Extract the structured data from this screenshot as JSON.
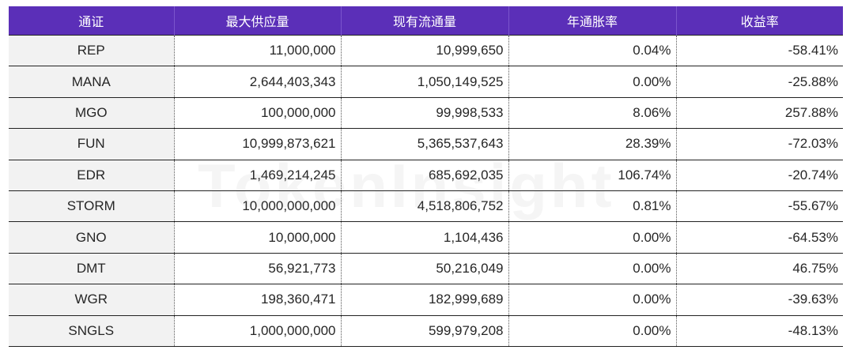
{
  "table": {
    "headers": [
      "通证",
      "最大供应量",
      "现有流通量",
      "年通胀率",
      "收益率"
    ],
    "rows": [
      [
        "REP",
        "11,000,000",
        "10,999,650",
        "0.04%",
        "-58.41%"
      ],
      [
        "MANA",
        "2,644,403,343",
        "1,050,149,525",
        "0.00%",
        "-25.88%"
      ],
      [
        "MGO",
        "100,000,000",
        "99,998,533",
        "8.06%",
        "257.88%"
      ],
      [
        "FUN",
        "10,999,873,621",
        "5,365,537,643",
        "28.39%",
        "-72.03%"
      ],
      [
        "EDR",
        "1,469,214,245",
        "685,692,035",
        "106.74%",
        "-20.74%"
      ],
      [
        "STORM",
        "10,000,000,000",
        "4,518,806,752",
        "0.81%",
        "-55.67%"
      ],
      [
        "GNO",
        "10,000,000",
        "1,104,436",
        "0.00%",
        "-64.53%"
      ],
      [
        "DMT",
        "56,921,773",
        "50,216,049",
        "0.00%",
        "46.75%"
      ],
      [
        "WGR",
        "198,360,471",
        "182,999,689",
        "0.00%",
        "-39.63%"
      ],
      [
        "SNGLS",
        "1,000,000,000",
        "599,979,208",
        "0.00%",
        "-48.13%"
      ]
    ]
  },
  "watermark": "TokenInsight",
  "colors": {
    "header_bg": "#5b2fb8",
    "header_text": "#ffffff",
    "first_col_bg": "#f2f2f2"
  }
}
